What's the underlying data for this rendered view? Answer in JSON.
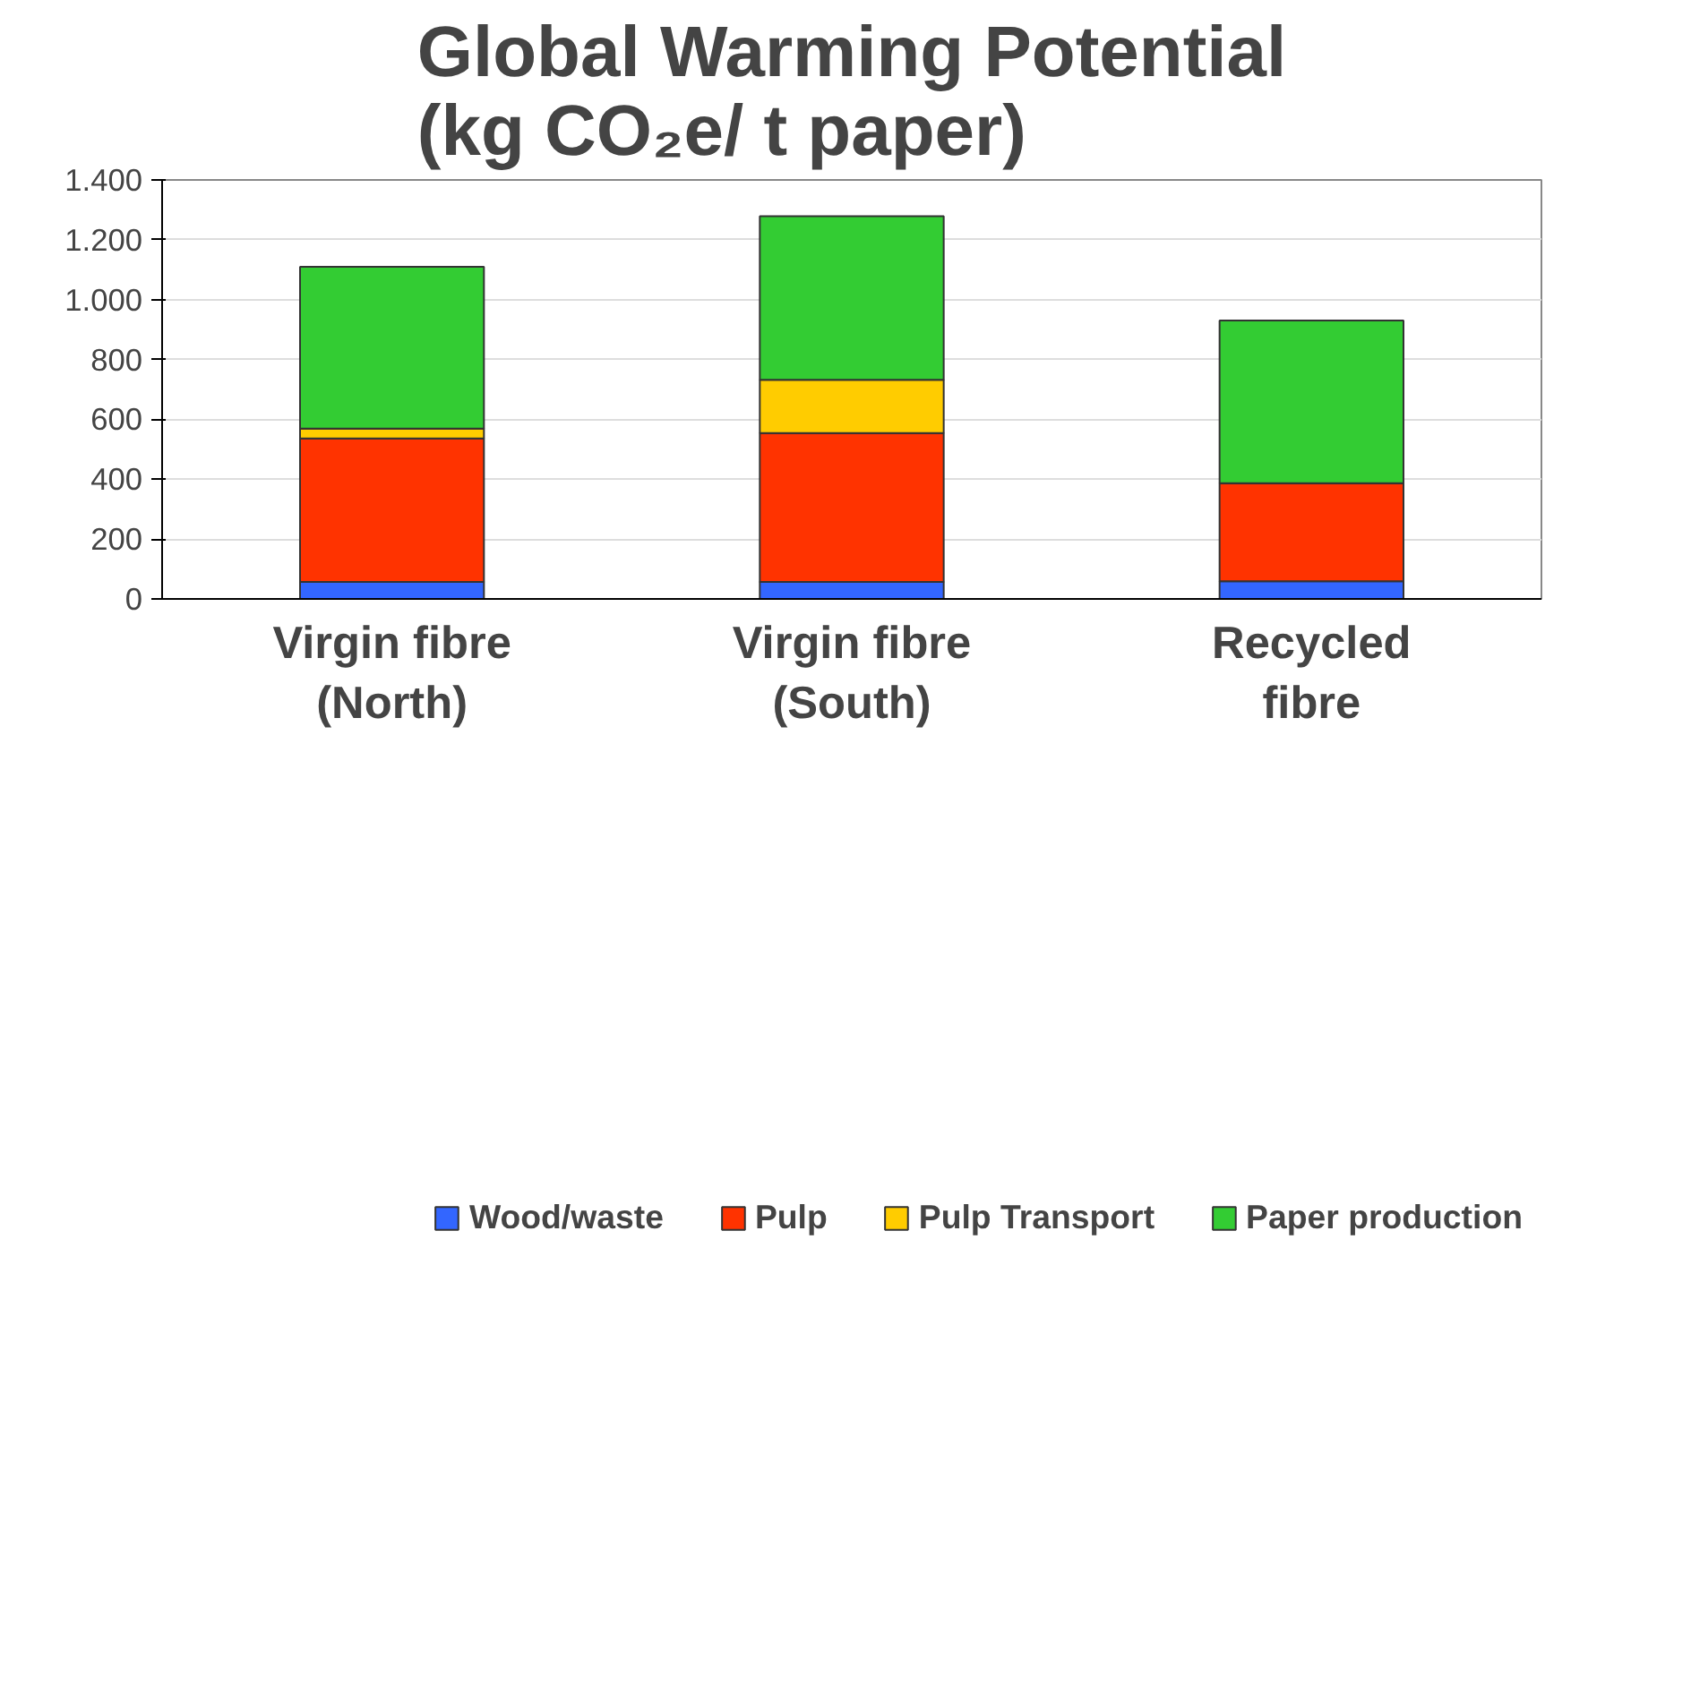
{
  "chart_data": {
    "type": "bar",
    "stacked": true,
    "title": "Global Warming Potential\n(kg CO₂e/ t paper)",
    "categories": [
      "Virgin fibre\n(North)",
      "Virgin fibre\n(South)",
      "Recycled\nfibre"
    ],
    "series": [
      {
        "name": "Wood/waste",
        "color": "#3366ff",
        "values": [
          57,
          57,
          59
        ]
      },
      {
        "name": "Pulp",
        "color": "#ff3300",
        "values": [
          479,
          497,
          328
        ]
      },
      {
        "name": "Pulp Transport",
        "color": "#ffcc00",
        "values": [
          33,
          178,
          0
        ]
      },
      {
        "name": "Paper production",
        "color": "#33cc33",
        "values": [
          541,
          547,
          543
        ]
      }
    ],
    "ylim": [
      0,
      1400
    ],
    "yticks": [
      0,
      200,
      400,
      600,
      800,
      {
        "value": 1000,
        "label": "1.000"
      },
      {
        "value": 1200,
        "label": "1.200"
      },
      {
        "value": 1400,
        "label": "1.400"
      }
    ],
    "grid": "y",
    "legend": "bottom"
  }
}
